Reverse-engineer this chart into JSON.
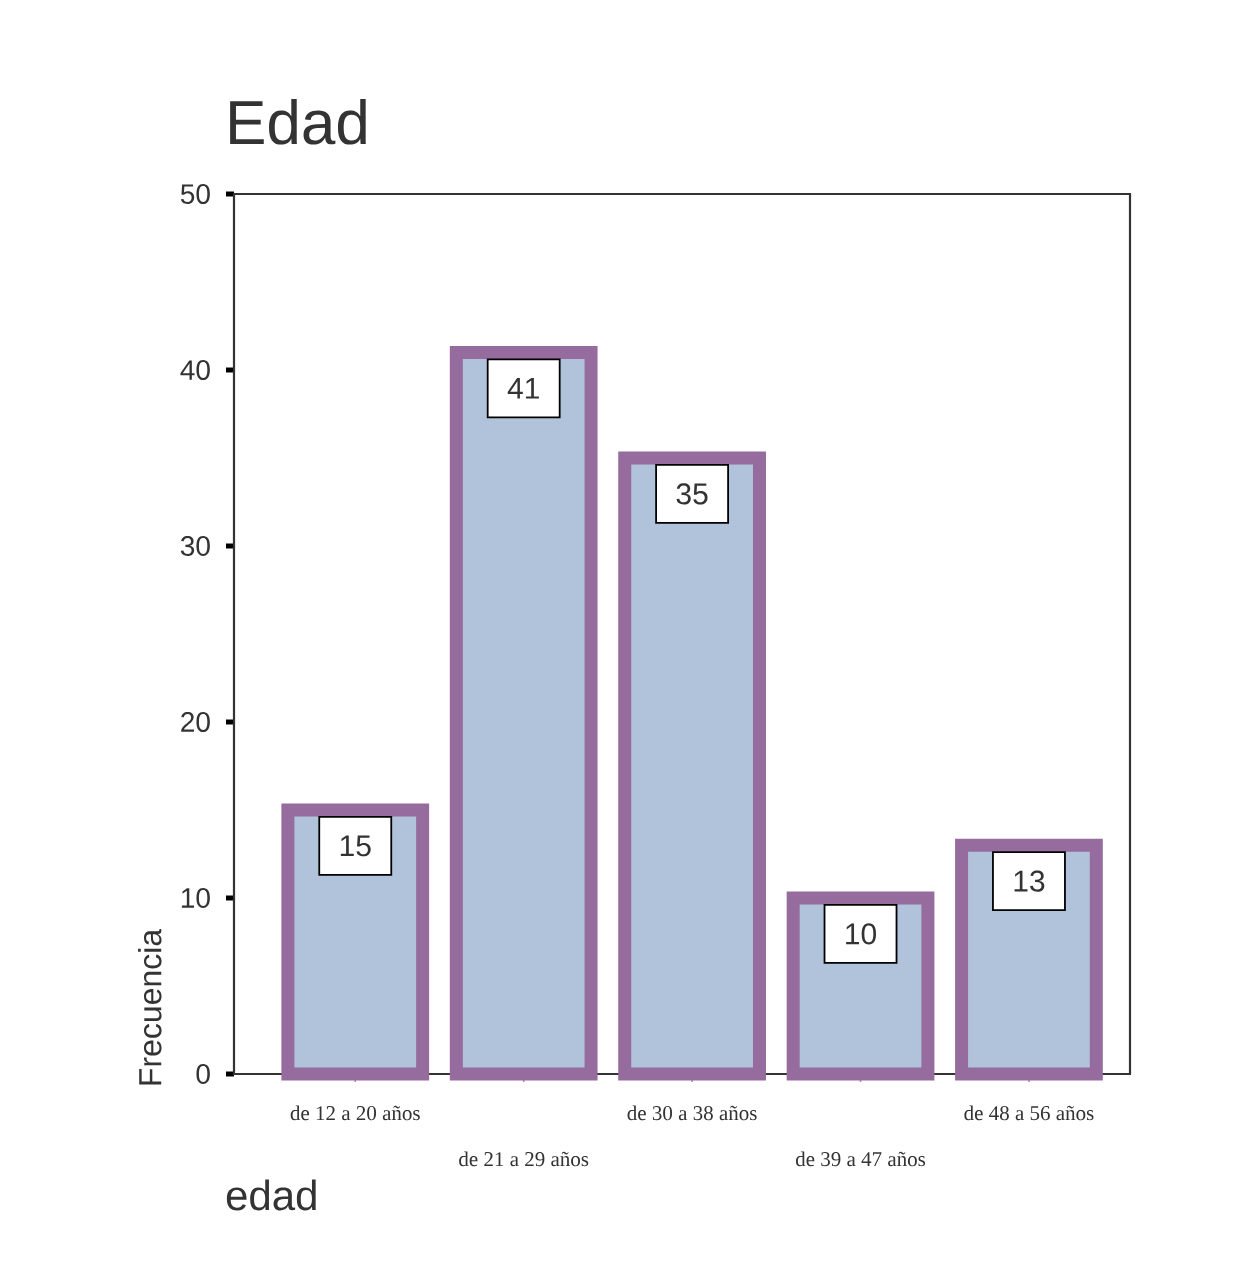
{
  "chart_data": {
    "type": "bar",
    "title": "Edad",
    "xlabel": "edad",
    "ylabel": "Frecuencia",
    "categories": [
      "de 12 a 20 años",
      "de 21 a 29 años",
      "de 30 a 38 años",
      "de 39 a 47 años",
      "de 48 a 56 años"
    ],
    "values": [
      15,
      41,
      35,
      10,
      13
    ],
    "color": "#b0c3db",
    "ylim": [
      0,
      50
    ],
    "yticks": [
      0,
      10,
      20,
      30,
      40,
      50
    ],
    "data_labels": true
  }
}
